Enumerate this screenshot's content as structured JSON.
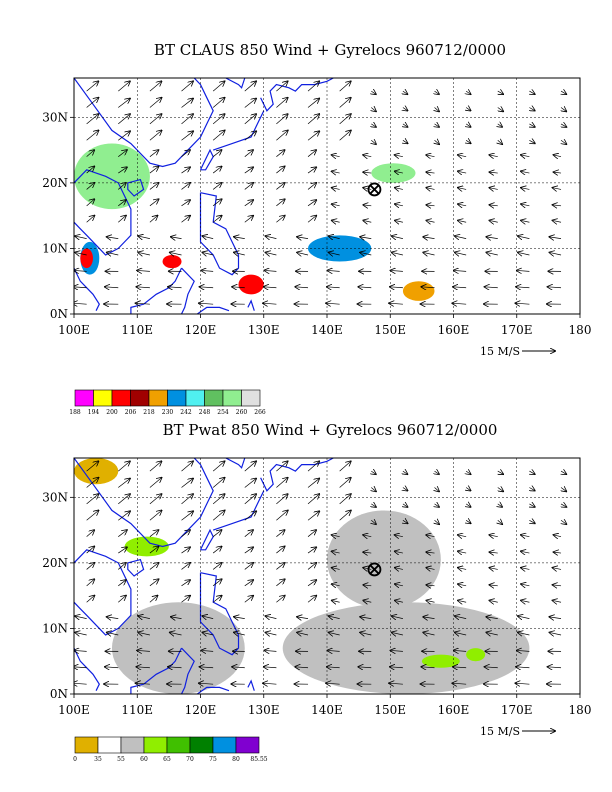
{
  "chart_data": [
    {
      "type": "heatmap",
      "title": "BT CLAUS 850 Wind + Gyrelocs 960712/0000",
      "x_ticks": [
        "100E",
        "110E",
        "120E",
        "130E",
        "140E",
        "150E",
        "160E",
        "170E",
        "180"
      ],
      "y_ticks": [
        "0N",
        "10N",
        "20N",
        "30N"
      ],
      "xlim": [
        100,
        180
      ],
      "ylim": [
        0,
        36
      ],
      "grid": "dashed",
      "vector_reference": "15 M/S",
      "gyre_location": {
        "lon": 147.5,
        "lat": 19
      },
      "colorbar": {
        "levels": [
          "188",
          "194",
          "200",
          "206",
          "218",
          "230",
          "242",
          "248",
          "254",
          "260",
          "266"
        ],
        "colors": [
          "#ff00ff",
          "#ffff00",
          "#ff0000",
          "#a00000",
          "#f0a000",
          "#0090e0",
          "#50f0f0",
          "#60c060",
          "#90ee90",
          "#e0e0e0"
        ]
      },
      "shaded_regions": [
        {
          "color": "#90ee90",
          "lon": [
            100,
            112
          ],
          "lat": [
            16,
            26
          ]
        },
        {
          "color": "#0090e0",
          "lon": [
            101,
            104
          ],
          "lat": [
            6,
            11
          ]
        },
        {
          "color": "#ff0000",
          "lon": [
            101,
            103
          ],
          "lat": [
            7,
            10
          ]
        },
        {
          "color": "#ff0000",
          "lon": [
            114,
            117
          ],
          "lat": [
            7,
            9
          ]
        },
        {
          "color": "#ff0000",
          "lon": [
            126,
            130
          ],
          "lat": [
            3,
            6
          ]
        },
        {
          "color": "#f0a000",
          "lon": [
            152,
            157
          ],
          "lat": [
            2,
            5
          ]
        },
        {
          "color": "#0090e0",
          "lon": [
            137,
            147
          ],
          "lat": [
            8,
            12
          ]
        },
        {
          "color": "#90ee90",
          "lon": [
            147,
            154
          ],
          "lat": [
            20,
            23
          ]
        }
      ]
    },
    {
      "type": "heatmap",
      "title": "BT Pwat 850 Wind + Gyrelocs 960712/0000",
      "x_ticks": [
        "100E",
        "110E",
        "120E",
        "130E",
        "140E",
        "150E",
        "160E",
        "170E",
        "180"
      ],
      "y_ticks": [
        "0N",
        "10N",
        "20N",
        "30N"
      ],
      "xlim": [
        100,
        180
      ],
      "ylim": [
        0,
        36
      ],
      "grid": "dashed",
      "vector_reference": "15 M/S",
      "gyre_location": {
        "lon": 147.5,
        "lat": 19
      },
      "colorbar": {
        "levels": [
          "0",
          "35",
          "55",
          "60",
          "65",
          "70",
          "75",
          "80",
          "85.55"
        ],
        "colors": [
          "#e0b000",
          "#ffffff",
          "#c0c0c0",
          "#90ee00",
          "#40c000",
          "#008000",
          "#0090e0",
          "#8000d0"
        ]
      },
      "shaded_regions": [
        {
          "color": "#e0b000",
          "lon": [
            100,
            107
          ],
          "lat": [
            32,
            36
          ]
        },
        {
          "color": "#90ee00",
          "lon": [
            108,
            115
          ],
          "lat": [
            21,
            24
          ]
        },
        {
          "color": "#c0c0c0",
          "lon": [
            106,
            127
          ],
          "lat": [
            0,
            14
          ]
        },
        {
          "color": "#c0c0c0",
          "lon": [
            133,
            172
          ],
          "lat": [
            0,
            14
          ]
        },
        {
          "color": "#c0c0c0",
          "lon": [
            140,
            158
          ],
          "lat": [
            13,
            28
          ]
        },
        {
          "color": "#90ee00",
          "lon": [
            155,
            161
          ],
          "lat": [
            4,
            6
          ]
        },
        {
          "color": "#90ee00",
          "lon": [
            162,
            165
          ],
          "lat": [
            5,
            7
          ]
        }
      ]
    }
  ]
}
